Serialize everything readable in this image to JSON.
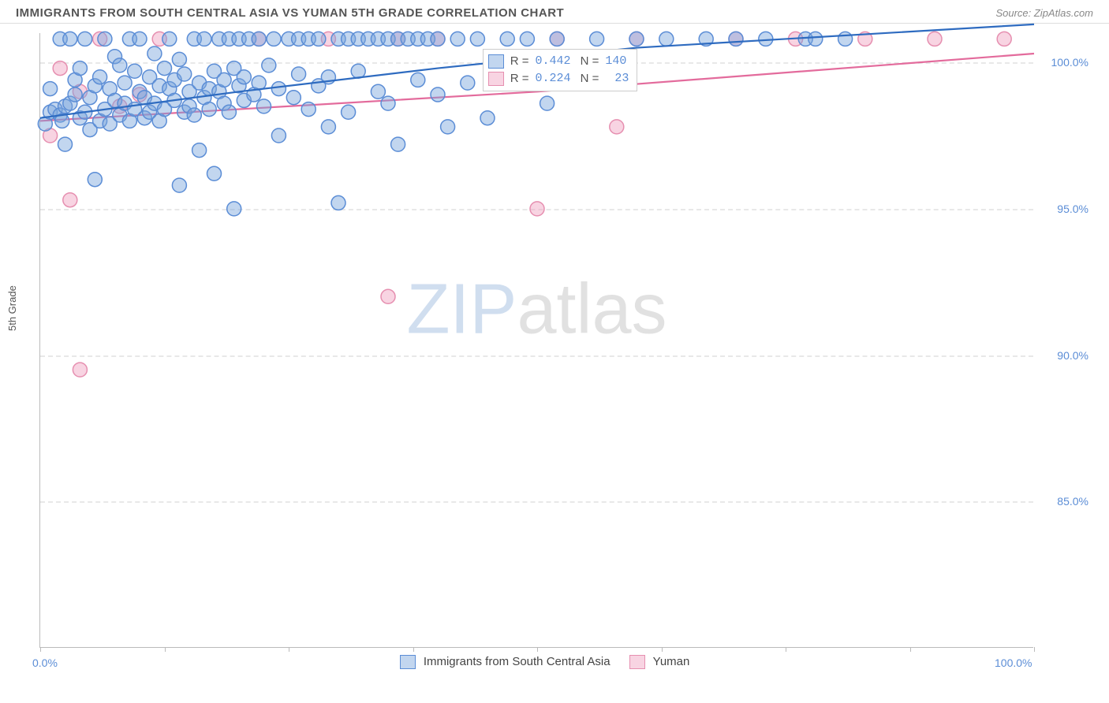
{
  "header": {
    "title": "IMMIGRANTS FROM SOUTH CENTRAL ASIA VS YUMAN 5TH GRADE CORRELATION CHART",
    "source": "Source: ZipAtlas.com"
  },
  "chart": {
    "type": "scatter",
    "ylabel": "5th Grade",
    "xlim": [
      0,
      100
    ],
    "ylim": [
      80,
      101
    ],
    "xticks": [
      {
        "v": 0,
        "label": "0.0%"
      },
      {
        "v": 50,
        "label": ""
      },
      {
        "v": 100,
        "label": "100.0%"
      }
    ],
    "xtick_marks": [
      0,
      12.5,
      25,
      37.5,
      50,
      62.5,
      75,
      87.5,
      100
    ],
    "yticks": [
      {
        "v": 85,
        "label": "85.0%"
      },
      {
        "v": 90,
        "label": "90.0%"
      },
      {
        "v": 95,
        "label": "95.0%"
      },
      {
        "v": 100,
        "label": "100.0%"
      }
    ],
    "grid_color": "#e8e8e8",
    "background_color": "#ffffff",
    "marker_radius": 9,
    "marker_stroke_width": 1.5,
    "line_width": 2.2,
    "series": {
      "a": {
        "label": "Immigrants from South Central Asia",
        "fill": "rgba(120,165,220,0.45)",
        "stroke": "#5b8dd6",
        "line_color": "#2e6bc0",
        "R": "0.442",
        "N": "140",
        "trend": [
          [
            0,
            98.1
          ],
          [
            20,
            99.0
          ],
          [
            40,
            99.8
          ],
          [
            60,
            100.5
          ],
          [
            100,
            101.3
          ]
        ],
        "points": [
          [
            0.5,
            97.9
          ],
          [
            1,
            98.3
          ],
          [
            1,
            99.1
          ],
          [
            1.5,
            98.4
          ],
          [
            2,
            98.2
          ],
          [
            2,
            100.8
          ],
          [
            2.2,
            98.0
          ],
          [
            2.5,
            98.5
          ],
          [
            2.5,
            97.2
          ],
          [
            3,
            100.8
          ],
          [
            3,
            98.6
          ],
          [
            3.5,
            98.9
          ],
          [
            3.5,
            99.4
          ],
          [
            4,
            98.1
          ],
          [
            4,
            99.8
          ],
          [
            4.5,
            100.8
          ],
          [
            4.5,
            98.3
          ],
          [
            5,
            97.7
          ],
          [
            5,
            98.8
          ],
          [
            5.5,
            99.2
          ],
          [
            5.5,
            96.0
          ],
          [
            6,
            98.0
          ],
          [
            6,
            99.5
          ],
          [
            6.5,
            100.8
          ],
          [
            6.5,
            98.4
          ],
          [
            7,
            99.1
          ],
          [
            7,
            97.9
          ],
          [
            7.5,
            98.7
          ],
          [
            7.5,
            100.2
          ],
          [
            8,
            99.9
          ],
          [
            8,
            98.2
          ],
          [
            8.5,
            98.6
          ],
          [
            8.5,
            99.3
          ],
          [
            9,
            100.8
          ],
          [
            9,
            98.0
          ],
          [
            9.5,
            99.7
          ],
          [
            9.5,
            98.4
          ],
          [
            10,
            99.0
          ],
          [
            10,
            100.8
          ],
          [
            10.5,
            98.8
          ],
          [
            10.5,
            98.1
          ],
          [
            11,
            99.5
          ],
          [
            11,
            98.3
          ],
          [
            11.5,
            100.3
          ],
          [
            11.5,
            98.6
          ],
          [
            12,
            99.2
          ],
          [
            12,
            98.0
          ],
          [
            12.5,
            99.8
          ],
          [
            12.5,
            98.4
          ],
          [
            13,
            100.8
          ],
          [
            13,
            99.1
          ],
          [
            13.5,
            98.7
          ],
          [
            13.5,
            99.4
          ],
          [
            14,
            95.8
          ],
          [
            14,
            100.1
          ],
          [
            14.5,
            98.3
          ],
          [
            14.5,
            99.6
          ],
          [
            15,
            99.0
          ],
          [
            15,
            98.5
          ],
          [
            15.5,
            100.8
          ],
          [
            15.5,
            98.2
          ],
          [
            16,
            99.3
          ],
          [
            16,
            97.0
          ],
          [
            16.5,
            98.8
          ],
          [
            16.5,
            100.8
          ],
          [
            17,
            99.1
          ],
          [
            17,
            98.4
          ],
          [
            17.5,
            99.7
          ],
          [
            17.5,
            96.2
          ],
          [
            18,
            100.8
          ],
          [
            18,
            99.0
          ],
          [
            18.5,
            98.6
          ],
          [
            18.5,
            99.4
          ],
          [
            19,
            100.8
          ],
          [
            19,
            98.3
          ],
          [
            19.5,
            99.8
          ],
          [
            19.5,
            95.0
          ],
          [
            20,
            100.8
          ],
          [
            20,
            99.2
          ],
          [
            20.5,
            98.7
          ],
          [
            20.5,
            99.5
          ],
          [
            21,
            100.8
          ],
          [
            21.5,
            98.9
          ],
          [
            22,
            100.8
          ],
          [
            22,
            99.3
          ],
          [
            22.5,
            98.5
          ],
          [
            23,
            99.9
          ],
          [
            23.5,
            100.8
          ],
          [
            24,
            97.5
          ],
          [
            24,
            99.1
          ],
          [
            25,
            100.8
          ],
          [
            25.5,
            98.8
          ],
          [
            26,
            100.8
          ],
          [
            26,
            99.6
          ],
          [
            27,
            100.8
          ],
          [
            27,
            98.4
          ],
          [
            28,
            99.2
          ],
          [
            28,
            100.8
          ],
          [
            29,
            97.8
          ],
          [
            29,
            99.5
          ],
          [
            30,
            100.8
          ],
          [
            30,
            95.2
          ],
          [
            31,
            100.8
          ],
          [
            31,
            98.3
          ],
          [
            32,
            100.8
          ],
          [
            32,
            99.7
          ],
          [
            33,
            100.8
          ],
          [
            34,
            100.8
          ],
          [
            34,
            99.0
          ],
          [
            35,
            100.8
          ],
          [
            35,
            98.6
          ],
          [
            36,
            100.8
          ],
          [
            36,
            97.2
          ],
          [
            37,
            100.8
          ],
          [
            38,
            100.8
          ],
          [
            38,
            99.4
          ],
          [
            39,
            100.8
          ],
          [
            40,
            98.9
          ],
          [
            40,
            100.8
          ],
          [
            41,
            97.8
          ],
          [
            42,
            100.8
          ],
          [
            43,
            99.3
          ],
          [
            44,
            100.8
          ],
          [
            45,
            98.1
          ],
          [
            47,
            100.8
          ],
          [
            49,
            100.8
          ],
          [
            51,
            98.6
          ],
          [
            52,
            100.8
          ],
          [
            56,
            100.8
          ],
          [
            60,
            100.8
          ],
          [
            63,
            100.8
          ],
          [
            67,
            100.8
          ],
          [
            70,
            100.8
          ],
          [
            73,
            100.8
          ],
          [
            77,
            100.8
          ],
          [
            78,
            100.8
          ],
          [
            81,
            100.8
          ]
        ]
      },
      "b": {
        "label": "Yuman",
        "fill": "rgba(240,160,190,0.45)",
        "stroke": "#e68fb0",
        "line_color": "#e36b9c",
        "R": "0.224",
        "N": "23",
        "trend": [
          [
            0,
            98.0
          ],
          [
            50,
            99.0
          ],
          [
            100,
            100.3
          ]
        ],
        "points": [
          [
            1,
            97.5
          ],
          [
            2,
            99.8
          ],
          [
            3,
            95.3
          ],
          [
            4,
            99.0
          ],
          [
            4,
            89.5
          ],
          [
            6,
            100.8
          ],
          [
            8,
            98.5
          ],
          [
            10,
            98.9
          ],
          [
            12,
            100.8
          ],
          [
            22,
            100.8
          ],
          [
            29,
            100.8
          ],
          [
            35,
            92.0
          ],
          [
            36,
            100.8
          ],
          [
            40,
            100.8
          ],
          [
            50,
            95.0
          ],
          [
            52,
            100.8
          ],
          [
            58,
            97.8
          ],
          [
            60,
            100.8
          ],
          [
            70,
            100.8
          ],
          [
            76,
            100.8
          ],
          [
            83,
            100.8
          ],
          [
            90,
            100.8
          ],
          [
            97,
            100.8
          ]
        ]
      }
    },
    "legend_inset": {
      "x": 44.5,
      "y_top": 20
    },
    "legend_bottom": true,
    "watermark": {
      "text_a": "ZIP",
      "color_a": "rgba(120,160,210,0.35)",
      "text_b": "atlas",
      "color_b": "rgba(170,170,170,0.35)"
    }
  }
}
